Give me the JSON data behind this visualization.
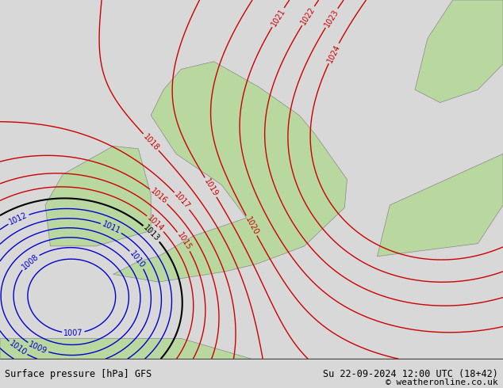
{
  "title_left": "Surface pressure [hPa] GFS",
  "title_right": "Su 22-09-2024 12:00 UTC (18+42)",
  "copyright": "© weatheronline.co.uk",
  "bg_color": "#d8d8d8",
  "land_color": "#b8d8a0",
  "border_color": "#888888",
  "red_contour_color": "#cc0000",
  "blue_contour_color": "#0000cc",
  "black_contour_color": "#000000",
  "bottom_bar_color": "#e8e8e8",
  "text_color": "#000000",
  "font_size_labels": 7,
  "font_size_bottom": 8.5
}
